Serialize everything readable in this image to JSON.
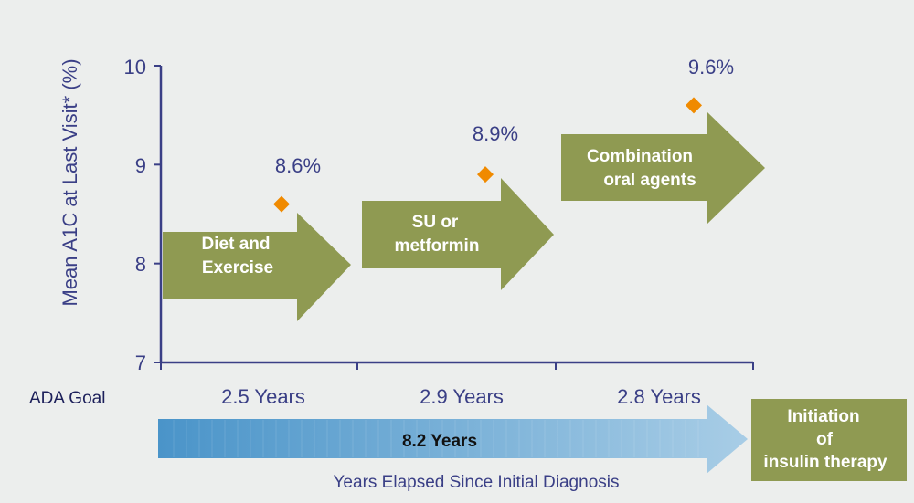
{
  "chart_data": {
    "type": "scatter",
    "ylabel": "Mean A1C at Last Visit* (%)",
    "xlabel": "Years Elapsed Since Initial Diagnosis",
    "ylim": [
      7,
      10
    ],
    "yticks": [
      "10",
      "9",
      "8",
      "7"
    ],
    "series": [
      {
        "values": [
          8.6,
          8.9,
          9.6
        ]
      }
    ],
    "value_labels": [
      "8.6%",
      "8.9%",
      "9.6%"
    ],
    "stages": [
      {
        "line1": "Diet and",
        "line2": "Exercise",
        "years": "2.5 Years"
      },
      {
        "line1": "SU or",
        "line2": "metformin",
        "years": "2.9 Years"
      },
      {
        "line1": "Combination",
        "line2": "oral agents",
        "years": "2.8 Years"
      }
    ],
    "goal_label": "ADA Goal",
    "total_label": "8.2 Years",
    "final_box": {
      "line1": "Initiation",
      "line2": "of",
      "line3": "insulin therapy"
    },
    "colors": {
      "axis": "#3a3f86",
      "marker": "#f08a00",
      "stage_arrow": "#8f9a52",
      "timeline_start": "#4a94c9",
      "timeline_end": "#a8cde6",
      "background": "#eceeed"
    }
  }
}
